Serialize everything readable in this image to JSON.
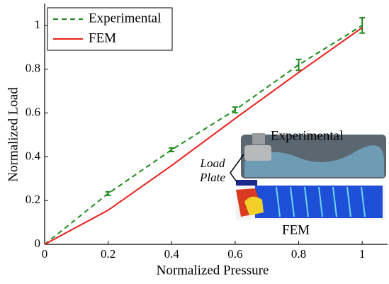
{
  "chart_data": {
    "type": "line",
    "xlabel": "Normalized Pressure",
    "ylabel": "Normalized Load",
    "x": [
      0,
      0.2,
      0.4,
      0.6,
      0.8,
      1
    ],
    "series": [
      {
        "name": "Experimental",
        "color": "#1a8a1a",
        "dash": true,
        "values": [
          0,
          0.232,
          0.432,
          0.614,
          0.82,
          1.0
        ],
        "errors": [
          null,
          0.008,
          0.008,
          0.013,
          0.025,
          0.035
        ]
      },
      {
        "name": "FEM",
        "color": "#e8201c",
        "dash": false,
        "values": [
          0,
          0.156,
          0.36,
          0.575,
          0.785,
          0.99
        ]
      }
    ],
    "xlim": [
      0,
      1.08
    ],
    "ylim": [
      0,
      1.1
    ],
    "xticks": [
      0,
      0.2,
      0.4,
      0.6,
      0.8,
      1
    ],
    "yticks": [
      0,
      0.2,
      0.4,
      0.6,
      0.8,
      1
    ],
    "legend": "upper left",
    "inset_labels": [
      "Experimental",
      "FEM",
      "Load",
      "Plate"
    ]
  }
}
